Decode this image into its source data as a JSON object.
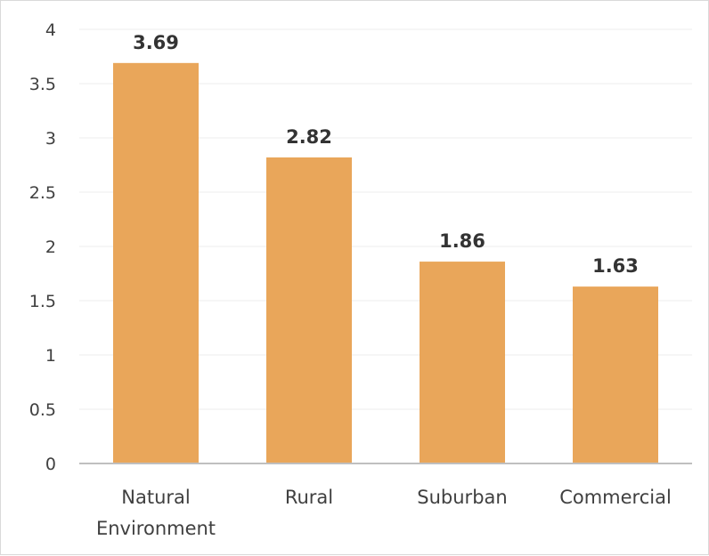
{
  "chart_data": {
    "type": "bar",
    "categories": [
      [
        "Natural",
        "Environment"
      ],
      [
        "Rural"
      ],
      [
        "Suburban"
      ],
      [
        "Commercial"
      ]
    ],
    "values": [
      3.69,
      2.82,
      1.86,
      1.63
    ],
    "data_labels": [
      "3.69",
      "2.82",
      "1.86",
      "1.63"
    ],
    "y_ticks": [
      "0",
      "0.5",
      "1",
      "1.5",
      "2",
      "2.5",
      "3",
      "3.5",
      "4"
    ],
    "ylim": [
      0,
      4
    ],
    "title": "",
    "xlabel": "",
    "ylabel": "",
    "grid": true,
    "bar_color": "#E9A65A"
  }
}
